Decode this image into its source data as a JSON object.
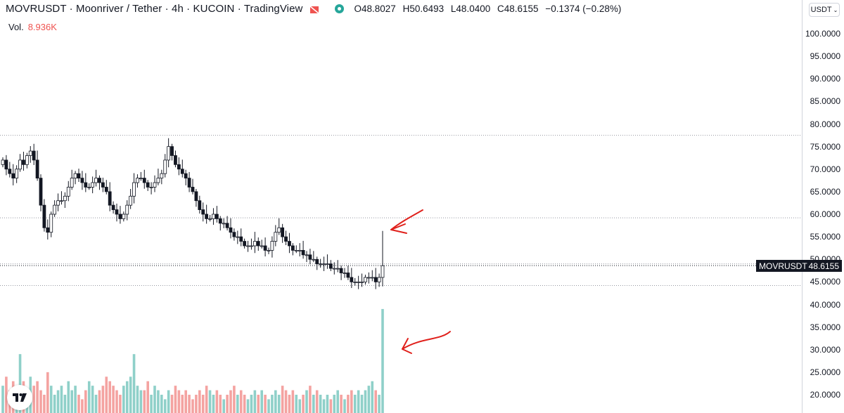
{
  "header": {
    "symbol": "MOVRUSDT · Moonriver / Tether · 4h · KUCOIN · TradingView",
    "open_label": "O",
    "open": "48.8027",
    "high_label": "H",
    "high": "50.6493",
    "low_label": "L",
    "low": "48.0400",
    "close_label": "C",
    "close": "48.6155",
    "change": "−0.1374 (−0.28%)",
    "flag_icon": "flag-icon",
    "status_icon": "market-status-icon"
  },
  "volume": {
    "label": "Vol.",
    "value": "8.936K"
  },
  "currency_selector": "USDT",
  "price_tag": {
    "symbol": "MOVRUSDT",
    "price": "48.6155"
  },
  "colors": {
    "up": "#26a69a",
    "down": "#ef5350",
    "candle": "#131722",
    "annotation": "#e0201b"
  },
  "chart_data": {
    "type": "candlestick",
    "price_scale": {
      "ticks": [
        "100.0000",
        "95.0000",
        "90.0000",
        "85.0000",
        "80.0000",
        "75.0000",
        "70.0000",
        "65.0000",
        "60.0000",
        "55.0000",
        "50.0000",
        "45.0000",
        "40.0000",
        "35.0000",
        "30.0000",
        "25.0000",
        "20.0000"
      ],
      "range": [
        18.5,
        104
      ]
    },
    "horizontal_levels": [
      77.5,
      59.2,
      49.0,
      44.2
    ],
    "close_series": [
      72,
      70,
      69,
      68,
      70,
      72,
      71,
      73,
      74,
      72,
      68,
      62,
      57,
      56,
      60,
      62,
      63,
      63,
      64,
      66,
      68,
      69,
      68,
      67,
      66,
      66,
      67,
      68,
      67,
      66,
      65,
      62,
      61,
      60,
      59,
      60,
      62,
      64,
      67,
      68,
      68,
      67,
      66,
      66,
      67,
      68,
      69,
      72,
      75,
      73,
      71,
      70,
      69,
      68,
      66,
      65,
      63,
      61,
      60,
      59,
      59,
      60,
      59,
      58,
      58,
      57,
      56,
      55,
      55,
      54,
      53,
      53,
      53,
      54,
      53,
      53,
      52,
      52,
      54,
      56,
      57,
      55,
      54,
      53,
      52,
      52,
      52,
      51,
      51,
      50,
      50,
      49,
      49,
      49,
      49,
      48,
      48,
      48,
      47,
      47,
      46,
      45,
      45,
      45,
      45,
      46,
      46,
      46,
      45,
      46,
      48.6
    ],
    "volumes": [
      22,
      24,
      21,
      23,
      22,
      29,
      23,
      20,
      24,
      22,
      23,
      21,
      20,
      25,
      22,
      20,
      21,
      22,
      20,
      23,
      21,
      22,
      20,
      19,
      21,
      23,
      22,
      20,
      21,
      22,
      24,
      23,
      22,
      21,
      20,
      22,
      23,
      24,
      29,
      22,
      21,
      21,
      23,
      20,
      22,
      21,
      20,
      19,
      21,
      20,
      22,
      21,
      20,
      21,
      20,
      19,
      20,
      21,
      20,
      22,
      21,
      20,
      21,
      20,
      19,
      20,
      21,
      22,
      20,
      21,
      20,
      19,
      20,
      21,
      20,
      21,
      20,
      19,
      20,
      21,
      20,
      22,
      21,
      20,
      21,
      20,
      19,
      20,
      21,
      22,
      20,
      21,
      20,
      19,
      20,
      19,
      20,
      21,
      20,
      19,
      20,
      21,
      20,
      21,
      20,
      21,
      22,
      23,
      21,
      20,
      39
    ],
    "annotations": [
      {
        "type": "arrow",
        "points_to": "spike-high"
      },
      {
        "type": "arrow",
        "points_to": "volume-spike"
      }
    ]
  }
}
